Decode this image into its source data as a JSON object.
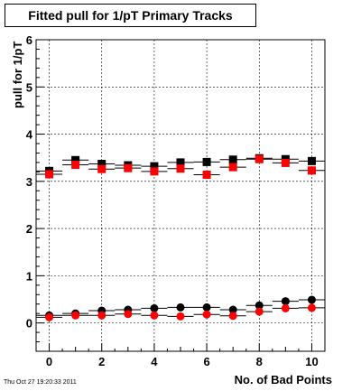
{
  "chart_data": {
    "type": "scatter",
    "title": "Fitted pull for 1/pT Primary Tracks",
    "xlabel": "No. of Bad Points",
    "ylabel": "pull for 1/pT",
    "xlim": [
      -0.5,
      10.5
    ],
    "ylim": [
      -0.6,
      6
    ],
    "x_ticks": [
      0,
      2,
      4,
      6,
      8,
      10
    ],
    "y_ticks": [
      0,
      1,
      2,
      3,
      4,
      5,
      6
    ],
    "grid": true,
    "series": [
      {
        "marker": "square",
        "color": "#000000",
        "x": [
          0,
          1,
          2,
          3,
          4,
          5,
          6,
          7,
          8,
          9,
          10
        ],
        "y": [
          3.22,
          3.45,
          3.37,
          3.34,
          3.32,
          3.4,
          3.41,
          3.46,
          3.49,
          3.47,
          3.43
        ]
      },
      {
        "marker": "square",
        "color": "#ff0000",
        "x": [
          0,
          1,
          2,
          3,
          4,
          5,
          6,
          7,
          8,
          9,
          10
        ],
        "y": [
          3.15,
          3.35,
          3.26,
          3.28,
          3.21,
          3.27,
          3.14,
          3.3,
          3.47,
          3.39,
          3.23
        ]
      },
      {
        "marker": "circle",
        "color": "#000000",
        "x": [
          0,
          1,
          2,
          3,
          4,
          5,
          6,
          7,
          8,
          9,
          10
        ],
        "y": [
          0.16,
          0.2,
          0.26,
          0.28,
          0.31,
          0.33,
          0.33,
          0.28,
          0.37,
          0.46,
          0.49
        ]
      },
      {
        "marker": "circle",
        "color": "#ff0000",
        "x": [
          0,
          1,
          2,
          3,
          4,
          5,
          6,
          7,
          8,
          9,
          10
        ],
        "y": [
          0.12,
          0.16,
          0.16,
          0.19,
          0.16,
          0.14,
          0.18,
          0.15,
          0.24,
          0.31,
          0.32
        ]
      }
    ]
  },
  "timestamp": "Thu Oct 27 19:20:33 2011"
}
